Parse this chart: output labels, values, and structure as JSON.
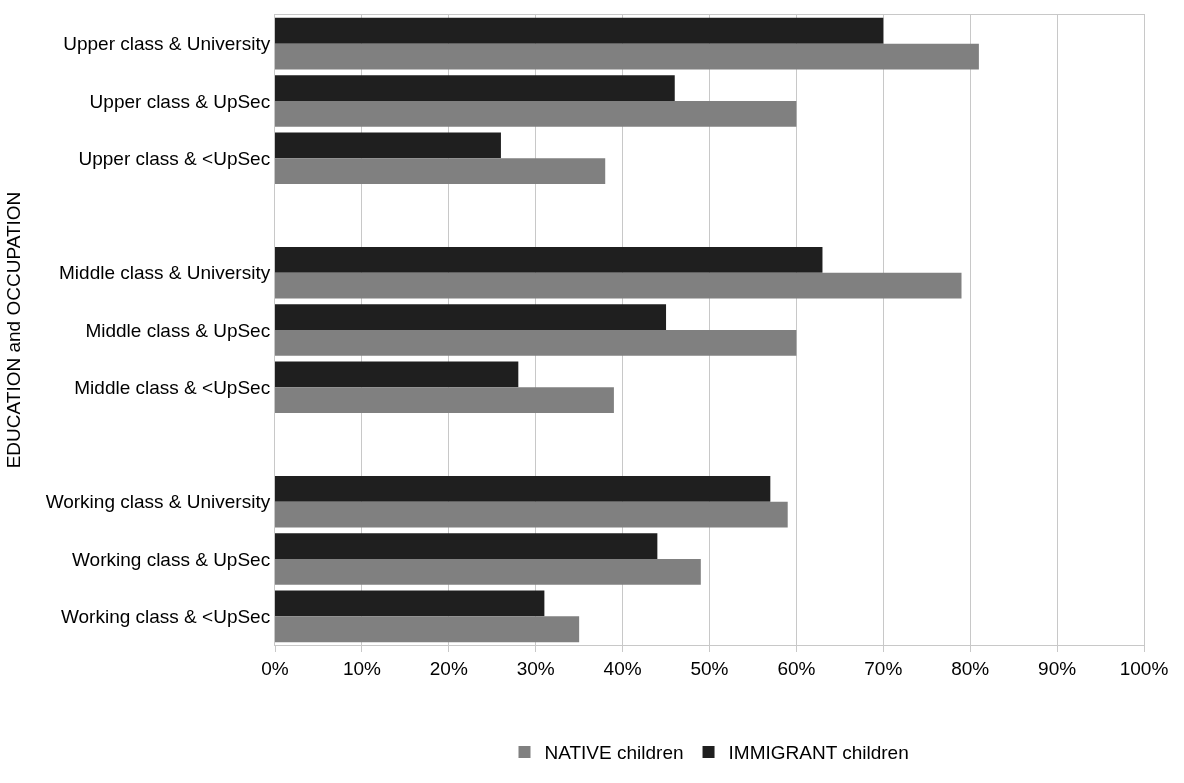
{
  "chart_data": {
    "type": "bar",
    "orientation": "horizontal",
    "ylabel": "EDUCATION and OCCUPATION",
    "categories": [
      "Upper class & University",
      "Upper class & UpSec",
      "Upper class & <UpSec",
      null,
      "Middle class & University",
      "Middle class & UpSec",
      "Middle class & <UpSec",
      null,
      "Working class & University",
      "Working class & UpSec",
      "Working class & <UpSec"
    ],
    "series": [
      {
        "name": "NATIVE children",
        "color": "#808080",
        "values": [
          81,
          60,
          38,
          null,
          79,
          60,
          39,
          null,
          59,
          49,
          35
        ]
      },
      {
        "name": "IMMIGRANT children",
        "color": "#1f1f1f",
        "values": [
          70,
          46,
          26,
          null,
          63,
          45,
          28,
          null,
          57,
          44,
          31
        ]
      }
    ],
    "xlim": [
      0,
      100
    ],
    "xticks": [
      {
        "value": 0,
        "label": "0%"
      },
      {
        "value": 10,
        "label": "10%"
      },
      {
        "value": 20,
        "label": "20%"
      },
      {
        "value": 30,
        "label": "30%"
      },
      {
        "value": 40,
        "label": "40%"
      },
      {
        "value": 50,
        "label": "50%"
      },
      {
        "value": 60,
        "label": "60%"
      },
      {
        "value": 70,
        "label": "70%"
      },
      {
        "value": 80,
        "label": "80%"
      },
      {
        "value": 90,
        "label": "90%"
      },
      {
        "value": 100,
        "label": "100%"
      }
    ],
    "grid": "x",
    "legend": "bottom"
  }
}
